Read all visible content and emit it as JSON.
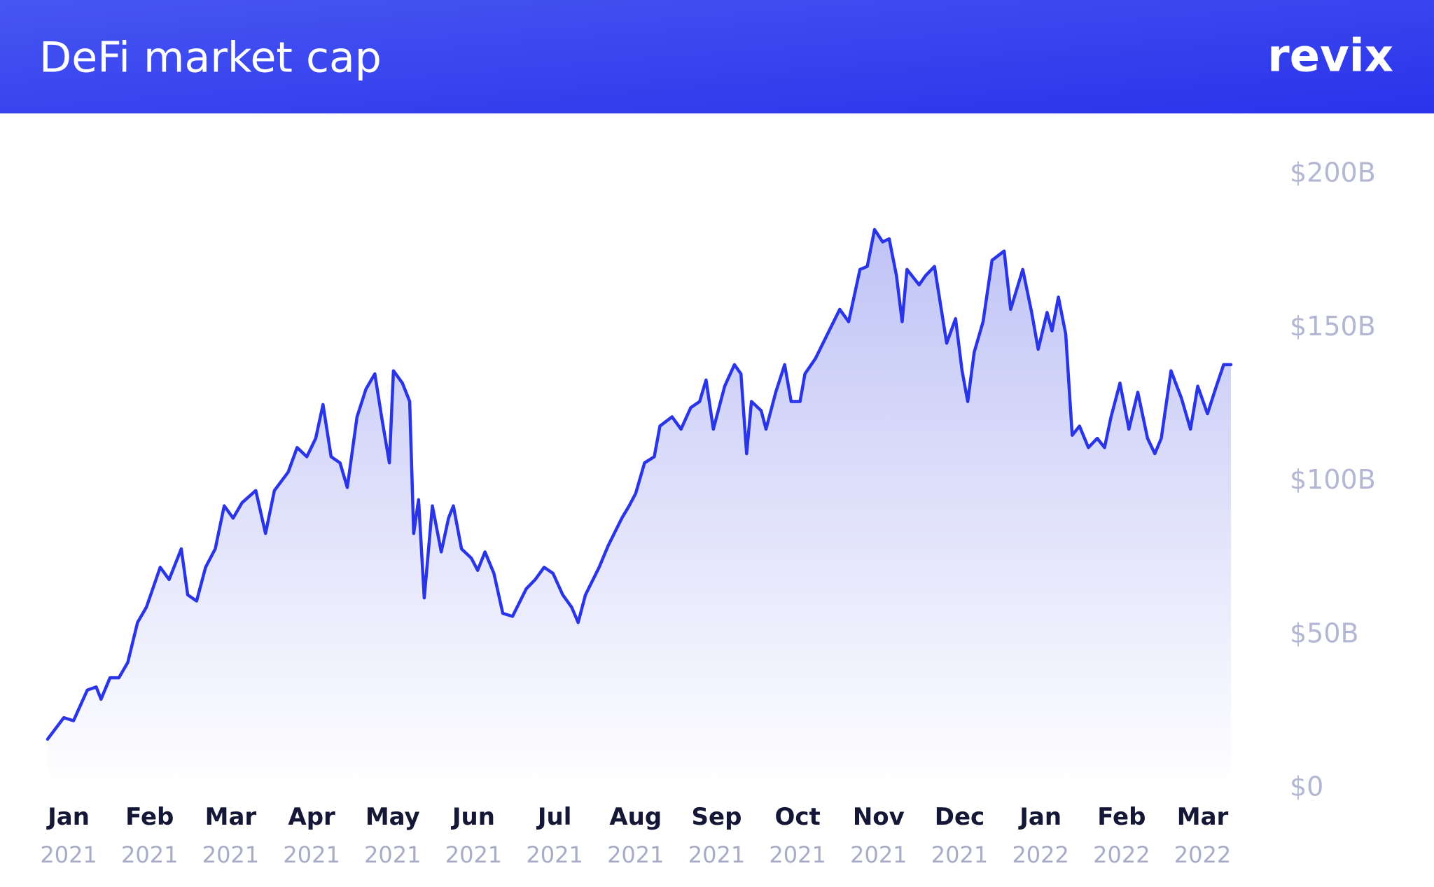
{
  "chart_data": {
    "type": "area",
    "title": "DeFi market cap",
    "logo": "revix",
    "color": "#2a35e8",
    "x": [
      -0.26,
      -0.06,
      0.06,
      0.23,
      0.34,
      0.4,
      0.51,
      0.62,
      0.73,
      0.85,
      0.96,
      1.13,
      1.24,
      1.39,
      1.47,
      1.58,
      1.69,
      1.81,
      1.92,
      2.03,
      2.14,
      2.31,
      2.43,
      2.54,
      2.71,
      2.82,
      2.94,
      3.05,
      3.14,
      3.24,
      3.35,
      3.44,
      3.56,
      3.67,
      3.78,
      3.87,
      3.96,
      4.01,
      4.12,
      4.21,
      4.26,
      4.32,
      4.39,
      4.49,
      4.6,
      4.69,
      4.75,
      4.85,
      4.97,
      5.05,
      5.14,
      5.25,
      5.36,
      5.48,
      5.65,
      5.76,
      5.87,
      5.98,
      6.1,
      6.21,
      6.29,
      6.38,
      6.55,
      6.66,
      6.83,
      6.92,
      7.0,
      7.11,
      7.23,
      7.3,
      7.45,
      7.56,
      7.68,
      7.79,
      7.87,
      7.96,
      8.1,
      8.22,
      8.3,
      8.37,
      8.43,
      8.55,
      8.61,
      8.73,
      8.84,
      8.92,
      9.03,
      9.09,
      9.22,
      9.37,
      9.52,
      9.63,
      9.77,
      9.86,
      9.95,
      10.05,
      10.13,
      10.22,
      10.29,
      10.35,
      10.5,
      10.58,
      10.69,
      10.84,
      10.95,
      11.03,
      11.1,
      11.18,
      11.29,
      11.4,
      11.55,
      11.63,
      11.78,
      11.89,
      11.97,
      12.08,
      12.14,
      12.22,
      12.31,
      12.39,
      12.48,
      12.59,
      12.7,
      12.79,
      12.87,
      12.98,
      13.09,
      13.2,
      13.32,
      13.41,
      13.49,
      13.61,
      13.74,
      13.85,
      13.94,
      14.06,
      14.17,
      14.26,
      14.35
    ],
    "values": [
      16,
      23,
      22,
      32,
      33,
      29,
      36,
      36,
      41,
      54,
      59,
      72,
      68,
      78,
      63,
      61,
      72,
      78,
      92,
      88,
      93,
      97,
      83,
      97,
      103,
      111,
      108,
      114,
      125,
      108,
      106,
      98,
      121,
      130,
      135,
      120,
      106,
      136,
      132,
      126,
      83,
      94,
      62,
      92,
      77,
      88,
      92,
      78,
      75,
      71,
      77,
      70,
      57,
      56,
      65,
      68,
      72,
      70,
      63,
      59,
      54,
      63,
      72,
      79,
      88,
      92,
      96,
      106,
      108,
      118,
      121,
      117,
      124,
      126,
      133,
      117,
      131,
      138,
      135,
      109,
      126,
      123,
      117,
      129,
      138,
      126,
      126,
      135,
      140,
      148,
      156,
      152,
      169,
      170,
      182,
      178,
      179,
      167,
      152,
      169,
      164,
      167,
      170,
      145,
      153,
      136,
      126,
      142,
      152,
      172,
      175,
      156,
      169,
      155,
      143,
      155,
      149,
      160,
      148,
      115,
      118,
      111,
      114,
      111,
      121,
      132,
      117,
      129,
      114,
      109,
      114,
      136,
      127,
      117,
      131,
      122,
      131,
      138,
      138
    ],
    "xlim": [
      -0.26,
      14.35
    ],
    "xticks": [
      {
        "value": 0,
        "label": "Jan",
        "year": "2021"
      },
      {
        "value": 1,
        "label": "Feb",
        "year": "2021"
      },
      {
        "value": 2,
        "label": "Mar",
        "year": "2021"
      },
      {
        "value": 3,
        "label": "Apr",
        "year": "2021"
      },
      {
        "value": 4,
        "label": "May",
        "year": "2021"
      },
      {
        "value": 5,
        "label": "Jun",
        "year": "2021"
      },
      {
        "value": 6,
        "label": "Jul",
        "year": "2021"
      },
      {
        "value": 7,
        "label": "Aug",
        "year": "2021"
      },
      {
        "value": 8,
        "label": "Sep",
        "year": "2021"
      },
      {
        "value": 9,
        "label": "Oct",
        "year": "2021"
      },
      {
        "value": 10,
        "label": "Nov",
        "year": "2021"
      },
      {
        "value": 11,
        "label": "Dec",
        "year": "2021"
      },
      {
        "value": 12,
        "label": "Jan",
        "year": "2022"
      },
      {
        "value": 13,
        "label": "Feb",
        "year": "2022"
      },
      {
        "value": 14,
        "label": "Mar",
        "year": "2022"
      }
    ],
    "ylim": [
      0,
      200
    ],
    "yticks": [
      {
        "value": 0,
        "label": "$0"
      },
      {
        "value": 50,
        "label": "$50B"
      },
      {
        "value": 100,
        "label": "$100B"
      },
      {
        "value": 150,
        "label": "$150B"
      },
      {
        "value": 200,
        "label": "$200B"
      }
    ]
  }
}
